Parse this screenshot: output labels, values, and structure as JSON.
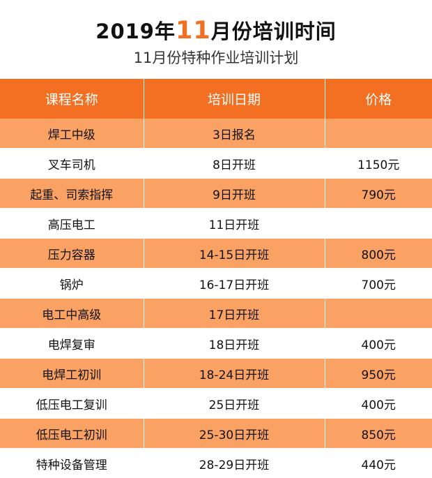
{
  "header": {
    "title_prefix": "2019年",
    "title_highlight": "11",
    "title_suffix": "月份培训时间",
    "subtitle": "11月份特种作业培训计划"
  },
  "colors": {
    "header_orange": "#f36f21",
    "row_orange": "#f9a263",
    "row_white": "#ffffff"
  },
  "table": {
    "columns": [
      "课程名称",
      "培训日期",
      "价格"
    ],
    "rows": [
      {
        "course": "焊工中级",
        "date": "3日报名",
        "price": ""
      },
      {
        "course": "叉车司机",
        "date": "8日开班",
        "price": "1150元"
      },
      {
        "course": "起重、司索指挥",
        "date": "9日开班",
        "price": "790元"
      },
      {
        "course": "高压电工",
        "date": "11日开班",
        "price": ""
      },
      {
        "course": "压力容器",
        "date": "14-15日开班",
        "price": "800元"
      },
      {
        "course": "锅炉",
        "date": "16-17日开班",
        "price": "700元"
      },
      {
        "course": "电工中高级",
        "date": "17日开班",
        "price": ""
      },
      {
        "course": "电焊复审",
        "date": "18日开班",
        "price": "400元"
      },
      {
        "course": "电焊工初训",
        "date": "18-24日开班",
        "price": "950元"
      },
      {
        "course": "低压电工复训",
        "date": "25日开班",
        "price": "400元"
      },
      {
        "course": "低压电工初训",
        "date": "25-30日开班",
        "price": "850元"
      },
      {
        "course": "特种设备管理",
        "date": "28-29日开班",
        "price": "440元"
      }
    ]
  }
}
